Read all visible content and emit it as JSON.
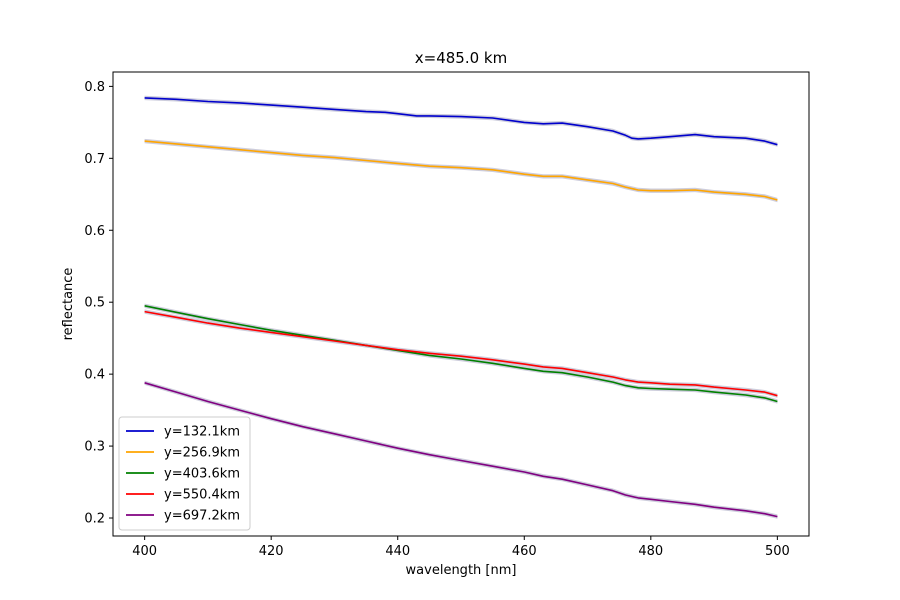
{
  "chart_data": {
    "type": "line",
    "title": "x=485.0 km",
    "xlabel": "wavelength [nm]",
    "ylabel": "reflectance",
    "xlim": [
      395,
      505
    ],
    "ylim": [
      0.175,
      0.82
    ],
    "xticks": [
      400,
      420,
      440,
      460,
      480,
      500
    ],
    "yticks": [
      0.2,
      0.3,
      0.4,
      0.5,
      0.6,
      0.7,
      0.8
    ],
    "xtick_labels": [
      "400",
      "420",
      "440",
      "460",
      "480",
      "500"
    ],
    "ytick_labels": [
      "0.2",
      "0.3",
      "0.4",
      "0.5",
      "0.6",
      "0.7",
      "0.8"
    ],
    "grid": false,
    "legend_position": "lower-left",
    "band_color": "#c8c8d8",
    "series": [
      {
        "name": "y=132.1km",
        "color": "#0000cc",
        "x": [
          400,
          405,
          410,
          415,
          420,
          425,
          430,
          435,
          438,
          440,
          443,
          445,
          450,
          455,
          460,
          463,
          466,
          470,
          474,
          476,
          477,
          478,
          480,
          483,
          487,
          490,
          495,
          498,
          500
        ],
        "y": [
          0.784,
          0.782,
          0.779,
          0.777,
          0.774,
          0.771,
          0.768,
          0.765,
          0.764,
          0.762,
          0.759,
          0.759,
          0.758,
          0.756,
          0.75,
          0.748,
          0.749,
          0.744,
          0.738,
          0.732,
          0.728,
          0.727,
          0.728,
          0.73,
          0.733,
          0.73,
          0.728,
          0.724,
          0.719
        ]
      },
      {
        "name": "y=256.9km",
        "color": "#ffa500",
        "x": [
          400,
          405,
          410,
          415,
          420,
          425,
          430,
          435,
          440,
          445,
          450,
          455,
          460,
          463,
          466,
          470,
          474,
          476,
          478,
          480,
          483,
          487,
          490,
          495,
          498,
          500
        ],
        "y": [
          0.724,
          0.72,
          0.716,
          0.712,
          0.708,
          0.704,
          0.701,
          0.697,
          0.693,
          0.689,
          0.687,
          0.684,
          0.678,
          0.675,
          0.675,
          0.67,
          0.665,
          0.66,
          0.656,
          0.655,
          0.655,
          0.656,
          0.653,
          0.65,
          0.647,
          0.642
        ]
      },
      {
        "name": "y=403.6km",
        "color": "#008000",
        "x": [
          400,
          405,
          410,
          415,
          420,
          425,
          430,
          435,
          440,
          445,
          450,
          455,
          460,
          463,
          466,
          470,
          474,
          476,
          478,
          480,
          483,
          487,
          490,
          495,
          498,
          500
        ],
        "y": [
          0.495,
          0.486,
          0.477,
          0.469,
          0.461,
          0.454,
          0.447,
          0.44,
          0.433,
          0.426,
          0.421,
          0.415,
          0.408,
          0.404,
          0.402,
          0.396,
          0.389,
          0.384,
          0.381,
          0.38,
          0.379,
          0.378,
          0.375,
          0.371,
          0.367,
          0.362
        ]
      },
      {
        "name": "y=550.4km",
        "color": "#ff0000",
        "x": [
          400,
          405,
          410,
          415,
          420,
          425,
          430,
          435,
          440,
          445,
          450,
          455,
          460,
          463,
          466,
          470,
          474,
          476,
          478,
          480,
          483,
          487,
          490,
          495,
          498,
          500
        ],
        "y": [
          0.487,
          0.479,
          0.471,
          0.464,
          0.458,
          0.452,
          0.446,
          0.44,
          0.434,
          0.429,
          0.425,
          0.42,
          0.414,
          0.41,
          0.408,
          0.402,
          0.396,
          0.392,
          0.389,
          0.388,
          0.386,
          0.385,
          0.382,
          0.378,
          0.375,
          0.37
        ]
      },
      {
        "name": "y=697.2km",
        "color": "#800080",
        "x": [
          400,
          405,
          410,
          415,
          420,
          425,
          430,
          435,
          440,
          445,
          450,
          455,
          460,
          463,
          466,
          470,
          474,
          476,
          478,
          480,
          483,
          487,
          490,
          495,
          498,
          500
        ],
        "y": [
          0.388,
          0.375,
          0.362,
          0.35,
          0.338,
          0.327,
          0.317,
          0.307,
          0.297,
          0.288,
          0.28,
          0.272,
          0.264,
          0.258,
          0.254,
          0.246,
          0.238,
          0.232,
          0.228,
          0.226,
          0.223,
          0.219,
          0.215,
          0.21,
          0.206,
          0.202
        ]
      }
    ]
  }
}
